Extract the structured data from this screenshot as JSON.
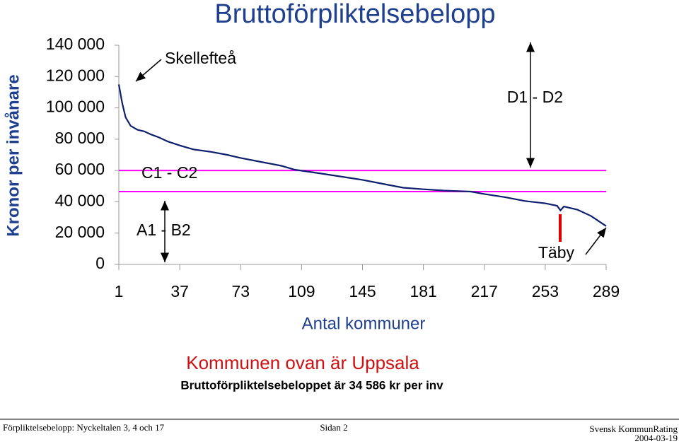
{
  "chart_data": {
    "type": "line",
    "title": "Bruttoförpliktelsebelopp",
    "y_label": "Kronor per invånare",
    "x_label": "Antal kommuner",
    "x": [
      1,
      3,
      5,
      8,
      12,
      16,
      20,
      25,
      30,
      37,
      45,
      55,
      65,
      73,
      85,
      97,
      105,
      121,
      133,
      145,
      157,
      169,
      181,
      193,
      209,
      217,
      229,
      241,
      253,
      260,
      262,
      264,
      272,
      280,
      289
    ],
    "values": [
      115000,
      103000,
      94000,
      88500,
      86000,
      85000,
      83000,
      81000,
      78500,
      76000,
      73500,
      72000,
      70000,
      68000,
      65500,
      63000,
      60500,
      58000,
      56000,
      54000,
      51500,
      49000,
      48000,
      47200,
      46500,
      45000,
      43000,
      40500,
      39000,
      37500,
      34500,
      37000,
      35000,
      31000,
      24500
    ],
    "color": "#0d1f6e",
    "xlim": [
      1,
      289
    ],
    "ylim": [
      0,
      140000
    ],
    "xticks": [
      1,
      37,
      73,
      109,
      145,
      181,
      217,
      253,
      289
    ],
    "yticks": [
      0,
      {
        "value": 20000,
        "label": "20 000"
      },
      {
        "value": 40000,
        "label": "40 000"
      },
      {
        "value": 60000,
        "label": "60 000"
      },
      {
        "value": 80000,
        "label": "80 000"
      },
      {
        "value": 100000,
        "label": "100 000"
      },
      {
        "value": 120000,
        "label": "120 000"
      },
      {
        "value": 140000,
        "label": "140 000"
      }
    ],
    "hlines": [
      60000,
      46500
    ],
    "hline_color": "#ff00ff",
    "annotations": [
      "Skellefteå",
      "D1 - D2",
      "C1 - C2",
      "A1 - B2",
      "Täby"
    ],
    "note_title": "Kommunen ovan är Uppsala",
    "note_text": "Bruttoförpliktelsebeloppet är 34 586 kr per inv"
  },
  "footer": {
    "left": "Förpliktelsebelopp: Nyckeltalen  3, 4 och 17",
    "center": "Sidan 2",
    "right": "Svensk KommunRating",
    "date": "2004-03-19"
  }
}
